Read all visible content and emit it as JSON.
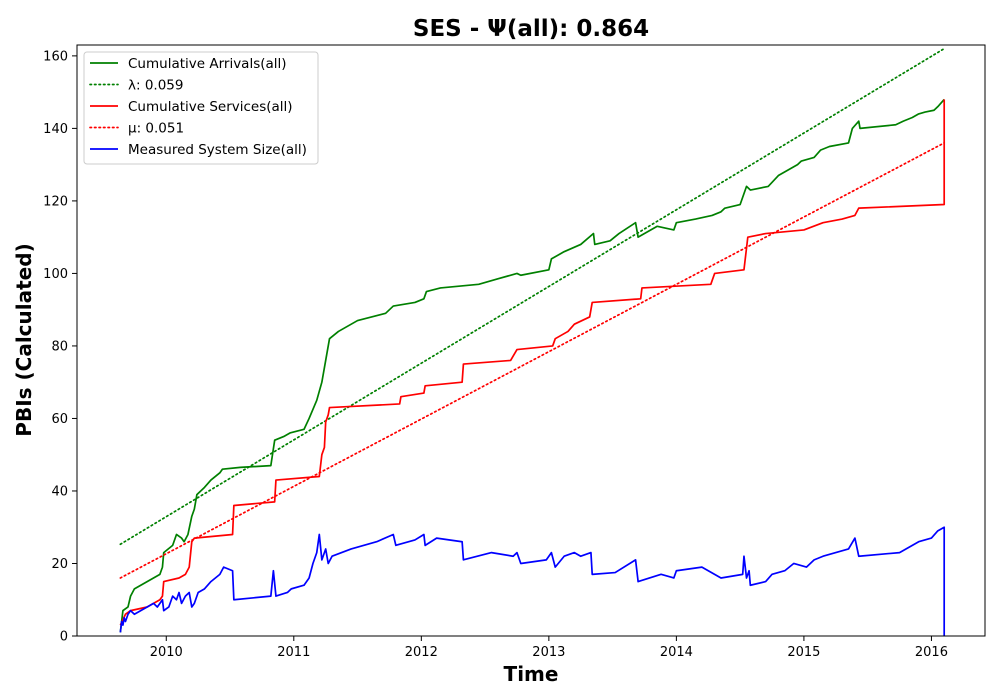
{
  "chart_data": {
    "type": "line",
    "title": "SES -  Ψ(all): 0.864",
    "xlabel": "Time",
    "ylabel": "PBIs (Calculated)",
    "xlim": [
      2009.3,
      2016.42
    ],
    "ylim": [
      0,
      163
    ],
    "xticks": [
      2010,
      2011,
      2012,
      2013,
      2014,
      2015,
      2016
    ],
    "yticks": [
      0,
      20,
      40,
      60,
      80,
      100,
      120,
      140,
      160
    ],
    "grid": false,
    "legend_position": "top-left",
    "series": [
      {
        "name": "Cumulative Arrivals(all)",
        "color": "#008000",
        "style": "solid",
        "points": [
          [
            2009.64,
            1
          ],
          [
            2009.66,
            7
          ],
          [
            2009.7,
            8
          ],
          [
            2009.72,
            11
          ],
          [
            2009.75,
            13
          ],
          [
            2009.85,
            15
          ],
          [
            2009.95,
            17
          ],
          [
            2009.97,
            19
          ],
          [
            2009.98,
            23
          ],
          [
            2010.05,
            25
          ],
          [
            2010.08,
            28
          ],
          [
            2010.12,
            27
          ],
          [
            2010.14,
            26
          ],
          [
            2010.17,
            28
          ],
          [
            2010.2,
            33
          ],
          [
            2010.22,
            35
          ],
          [
            2010.24,
            39
          ],
          [
            2010.3,
            41
          ],
          [
            2010.35,
            43
          ],
          [
            2010.42,
            45
          ],
          [
            2010.44,
            46
          ],
          [
            2010.58,
            46.5
          ],
          [
            2010.82,
            47
          ],
          [
            2010.85,
            54
          ],
          [
            2010.92,
            55
          ],
          [
            2010.97,
            56
          ],
          [
            2011.08,
            57
          ],
          [
            2011.12,
            60
          ],
          [
            2011.18,
            65
          ],
          [
            2011.22,
            70
          ],
          [
            2011.25,
            76
          ],
          [
            2011.28,
            82
          ],
          [
            2011.35,
            84
          ],
          [
            2011.5,
            87
          ],
          [
            2011.72,
            89
          ],
          [
            2011.78,
            91
          ],
          [
            2011.95,
            92
          ],
          [
            2012.02,
            93
          ],
          [
            2012.04,
            95
          ],
          [
            2012.15,
            96
          ],
          [
            2012.45,
            97
          ],
          [
            2012.6,
            98.5
          ],
          [
            2012.75,
            100
          ],
          [
            2012.78,
            99.5
          ],
          [
            2013.0,
            101
          ],
          [
            2013.02,
            104
          ],
          [
            2013.12,
            106
          ],
          [
            2013.25,
            108
          ],
          [
            2013.35,
            111
          ],
          [
            2013.36,
            108
          ],
          [
            2013.48,
            109
          ],
          [
            2013.55,
            111
          ],
          [
            2013.68,
            114
          ],
          [
            2013.7,
            110
          ],
          [
            2013.85,
            113
          ],
          [
            2013.98,
            112
          ],
          [
            2014.0,
            114
          ],
          [
            2014.15,
            115
          ],
          [
            2014.28,
            116
          ],
          [
            2014.35,
            117
          ],
          [
            2014.38,
            118
          ],
          [
            2014.5,
            119
          ],
          [
            2014.55,
            124
          ],
          [
            2014.58,
            123
          ],
          [
            2014.72,
            124
          ],
          [
            2014.8,
            127
          ],
          [
            2014.95,
            130
          ],
          [
            2014.98,
            131
          ],
          [
            2015.08,
            132
          ],
          [
            2015.13,
            134
          ],
          [
            2015.2,
            135
          ],
          [
            2015.35,
            136
          ],
          [
            2015.38,
            140
          ],
          [
            2015.43,
            142
          ],
          [
            2015.44,
            140
          ],
          [
            2015.72,
            141
          ],
          [
            2015.78,
            142
          ],
          [
            2015.85,
            143
          ],
          [
            2015.9,
            144
          ],
          [
            2015.95,
            144.5
          ],
          [
            2016.02,
            145
          ],
          [
            2016.05,
            146
          ],
          [
            2016.1,
            148
          ]
        ]
      },
      {
        "name": "λ: 0.059",
        "color": "#008000",
        "style": "dotted",
        "points": [
          [
            2009.64,
            25.3
          ],
          [
            2016.1,
            162
          ]
        ]
      },
      {
        "name": "Cumulative Services(all)",
        "color": "#ff0000",
        "style": "solid",
        "points": [
          [
            2009.64,
            3
          ],
          [
            2009.68,
            6
          ],
          [
            2009.72,
            7
          ],
          [
            2009.85,
            8
          ],
          [
            2009.9,
            9
          ],
          [
            2009.95,
            10
          ],
          [
            2009.97,
            11
          ],
          [
            2009.98,
            15
          ],
          [
            2010.1,
            16
          ],
          [
            2010.15,
            17
          ],
          [
            2010.18,
            19
          ],
          [
            2010.2,
            26
          ],
          [
            2010.22,
            27
          ],
          [
            2010.52,
            28
          ],
          [
            2010.53,
            36
          ],
          [
            2010.85,
            37
          ],
          [
            2010.86,
            43
          ],
          [
            2011.2,
            44
          ],
          [
            2011.22,
            50
          ],
          [
            2011.24,
            52
          ],
          [
            2011.25,
            59
          ],
          [
            2011.27,
            61
          ],
          [
            2011.28,
            63
          ],
          [
            2011.83,
            64
          ],
          [
            2011.84,
            66
          ],
          [
            2012.02,
            67
          ],
          [
            2012.03,
            69
          ],
          [
            2012.32,
            70
          ],
          [
            2012.33,
            75
          ],
          [
            2012.7,
            76
          ],
          [
            2012.75,
            79
          ],
          [
            2013.03,
            80
          ],
          [
            2013.05,
            82
          ],
          [
            2013.15,
            84
          ],
          [
            2013.2,
            86
          ],
          [
            2013.32,
            88
          ],
          [
            2013.34,
            92
          ],
          [
            2013.72,
            93
          ],
          [
            2013.73,
            96
          ],
          [
            2014.27,
            97
          ],
          [
            2014.3,
            100
          ],
          [
            2014.53,
            101
          ],
          [
            2014.56,
            110
          ],
          [
            2014.7,
            111
          ],
          [
            2015.0,
            112
          ],
          [
            2015.15,
            114
          ],
          [
            2015.3,
            115
          ],
          [
            2015.4,
            116
          ],
          [
            2015.43,
            118
          ],
          [
            2016.1,
            119
          ],
          [
            2016.1,
            148
          ]
        ]
      },
      {
        "name": "μ: 0.051",
        "color": "#ff0000",
        "style": "dotted",
        "points": [
          [
            2009.64,
            16
          ],
          [
            2016.1,
            136
          ]
        ]
      },
      {
        "name": "Measured System Size(all)",
        "color": "#0000ff",
        "style": "solid",
        "points": [
          [
            2009.64,
            1
          ],
          [
            2009.65,
            4
          ],
          [
            2009.66,
            3
          ],
          [
            2009.67,
            5
          ],
          [
            2009.68,
            4
          ],
          [
            2009.7,
            6
          ],
          [
            2009.72,
            7
          ],
          [
            2009.75,
            6
          ],
          [
            2009.8,
            7
          ],
          [
            2009.85,
            8
          ],
          [
            2009.9,
            9
          ],
          [
            2009.93,
            8
          ],
          [
            2009.97,
            10
          ],
          [
            2009.98,
            7
          ],
          [
            2010.02,
            8
          ],
          [
            2010.05,
            11
          ],
          [
            2010.08,
            10
          ],
          [
            2010.1,
            12
          ],
          [
            2010.12,
            9
          ],
          [
            2010.15,
            11
          ],
          [
            2010.18,
            12
          ],
          [
            2010.2,
            8
          ],
          [
            2010.22,
            9
          ],
          [
            2010.25,
            12
          ],
          [
            2010.3,
            13
          ],
          [
            2010.35,
            15
          ],
          [
            2010.42,
            17
          ],
          [
            2010.45,
            19
          ],
          [
            2010.52,
            18
          ],
          [
            2010.53,
            10
          ],
          [
            2010.82,
            11
          ],
          [
            2010.84,
            18
          ],
          [
            2010.86,
            11
          ],
          [
            2010.95,
            12
          ],
          [
            2010.98,
            13
          ],
          [
            2011.08,
            14
          ],
          [
            2011.12,
            16
          ],
          [
            2011.15,
            20
          ],
          [
            2011.18,
            23
          ],
          [
            2011.2,
            28
          ],
          [
            2011.22,
            21
          ],
          [
            2011.25,
            24
          ],
          [
            2011.27,
            20
          ],
          [
            2011.3,
            22
          ],
          [
            2011.45,
            24
          ],
          [
            2011.65,
            26
          ],
          [
            2011.78,
            28
          ],
          [
            2011.8,
            25
          ],
          [
            2011.95,
            26.5
          ],
          [
            2012.02,
            28
          ],
          [
            2012.03,
            25
          ],
          [
            2012.12,
            27
          ],
          [
            2012.32,
            26
          ],
          [
            2012.33,
            21
          ],
          [
            2012.55,
            23
          ],
          [
            2012.72,
            22
          ],
          [
            2012.75,
            23
          ],
          [
            2012.78,
            20
          ],
          [
            2012.98,
            21
          ],
          [
            2013.02,
            23
          ],
          [
            2013.05,
            19
          ],
          [
            2013.12,
            22
          ],
          [
            2013.2,
            23
          ],
          [
            2013.25,
            22
          ],
          [
            2013.33,
            23
          ],
          [
            2013.34,
            17
          ],
          [
            2013.52,
            17.5
          ],
          [
            2013.68,
            21
          ],
          [
            2013.7,
            15
          ],
          [
            2013.88,
            17
          ],
          [
            2013.98,
            16
          ],
          [
            2014.0,
            18
          ],
          [
            2014.2,
            19
          ],
          [
            2014.3,
            17
          ],
          [
            2014.35,
            16
          ],
          [
            2014.52,
            17
          ],
          [
            2014.53,
            22
          ],
          [
            2014.55,
            16
          ],
          [
            2014.57,
            18
          ],
          [
            2014.58,
            14
          ],
          [
            2014.7,
            15
          ],
          [
            2014.75,
            17
          ],
          [
            2014.85,
            18
          ],
          [
            2014.92,
            20
          ],
          [
            2015.02,
            19
          ],
          [
            2015.08,
            21
          ],
          [
            2015.15,
            22
          ],
          [
            2015.35,
            24
          ],
          [
            2015.4,
            27
          ],
          [
            2015.43,
            22
          ],
          [
            2015.75,
            23
          ],
          [
            2015.9,
            26
          ],
          [
            2016.0,
            27
          ],
          [
            2016.05,
            29
          ],
          [
            2016.1,
            30
          ],
          [
            2016.1,
            0
          ]
        ]
      }
    ]
  }
}
